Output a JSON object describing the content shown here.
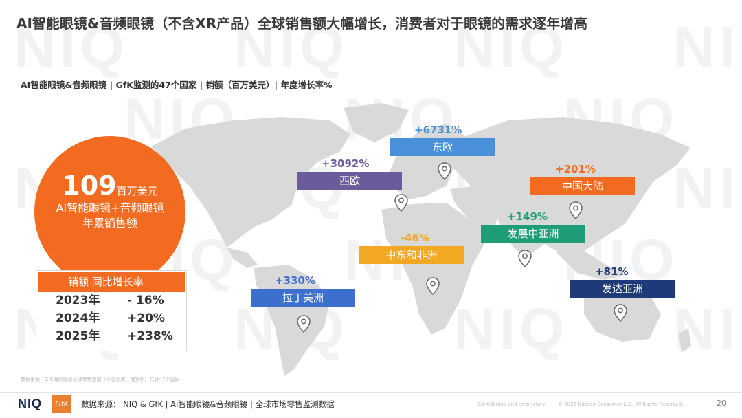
{
  "slide": {
    "title": "AI智能眼镜&音频眼镜（不含XR产品）全球销售额大幅增长，消费者对于眼镜的需求逐年增高",
    "subtitle": "AI智能眼镜&音频眼镜 | GfK监测的47个国家 | 销额（百万美元）| 年度增长率%",
    "watermark": "NIQ"
  },
  "summary": {
    "value": "109",
    "unit": "百万美元",
    "line1": "AI智能眼镜+音频眼镜",
    "line2": "年累销售额"
  },
  "growth_table": {
    "header": "销额 同比增长率",
    "rows": [
      {
        "year": "2023年",
        "value": "- 16%"
      },
      {
        "year": "2024年",
        "value": "+20%"
      },
      {
        "year": "2025年",
        "value": "+238%"
      }
    ]
  },
  "regions": [
    {
      "name": "东欧",
      "growth": "+6731%",
      "color": "#4a90d9"
    },
    {
      "name": "西欧",
      "growth": "+3092%",
      "color": "#6b5b9a"
    },
    {
      "name": "中国大陆",
      "growth": "+201%",
      "color": "#f36b21"
    },
    {
      "name": "发展中亚洲",
      "growth": "+149%",
      "color": "#1f9d78"
    },
    {
      "name": "中东和非洲",
      "growth": "-46%",
      "color": "#f2a822"
    },
    {
      "name": "拉丁美洲",
      "growth": "+330%",
      "color": "#3d6fcf"
    },
    {
      "name": "发达亚洲",
      "growth": "+81%",
      "color": "#1e3a78"
    }
  ],
  "source_note": "数据来源：GfK海外线测全球零售数据（不含北美、俄罗斯）共计47个国家",
  "footer": {
    "logo_niq": "NIQ",
    "logo_gfk": "GfK",
    "source": "数据来源： NIQ & GfK | AI智能眼镜&音频眼镜 | 全球市场零售监测数据",
    "confidential": "Confidential and proprietary",
    "copyright": "© 2026 Nielsen Consumer LLC. All Rights Reserved.",
    "page_number": "20"
  }
}
